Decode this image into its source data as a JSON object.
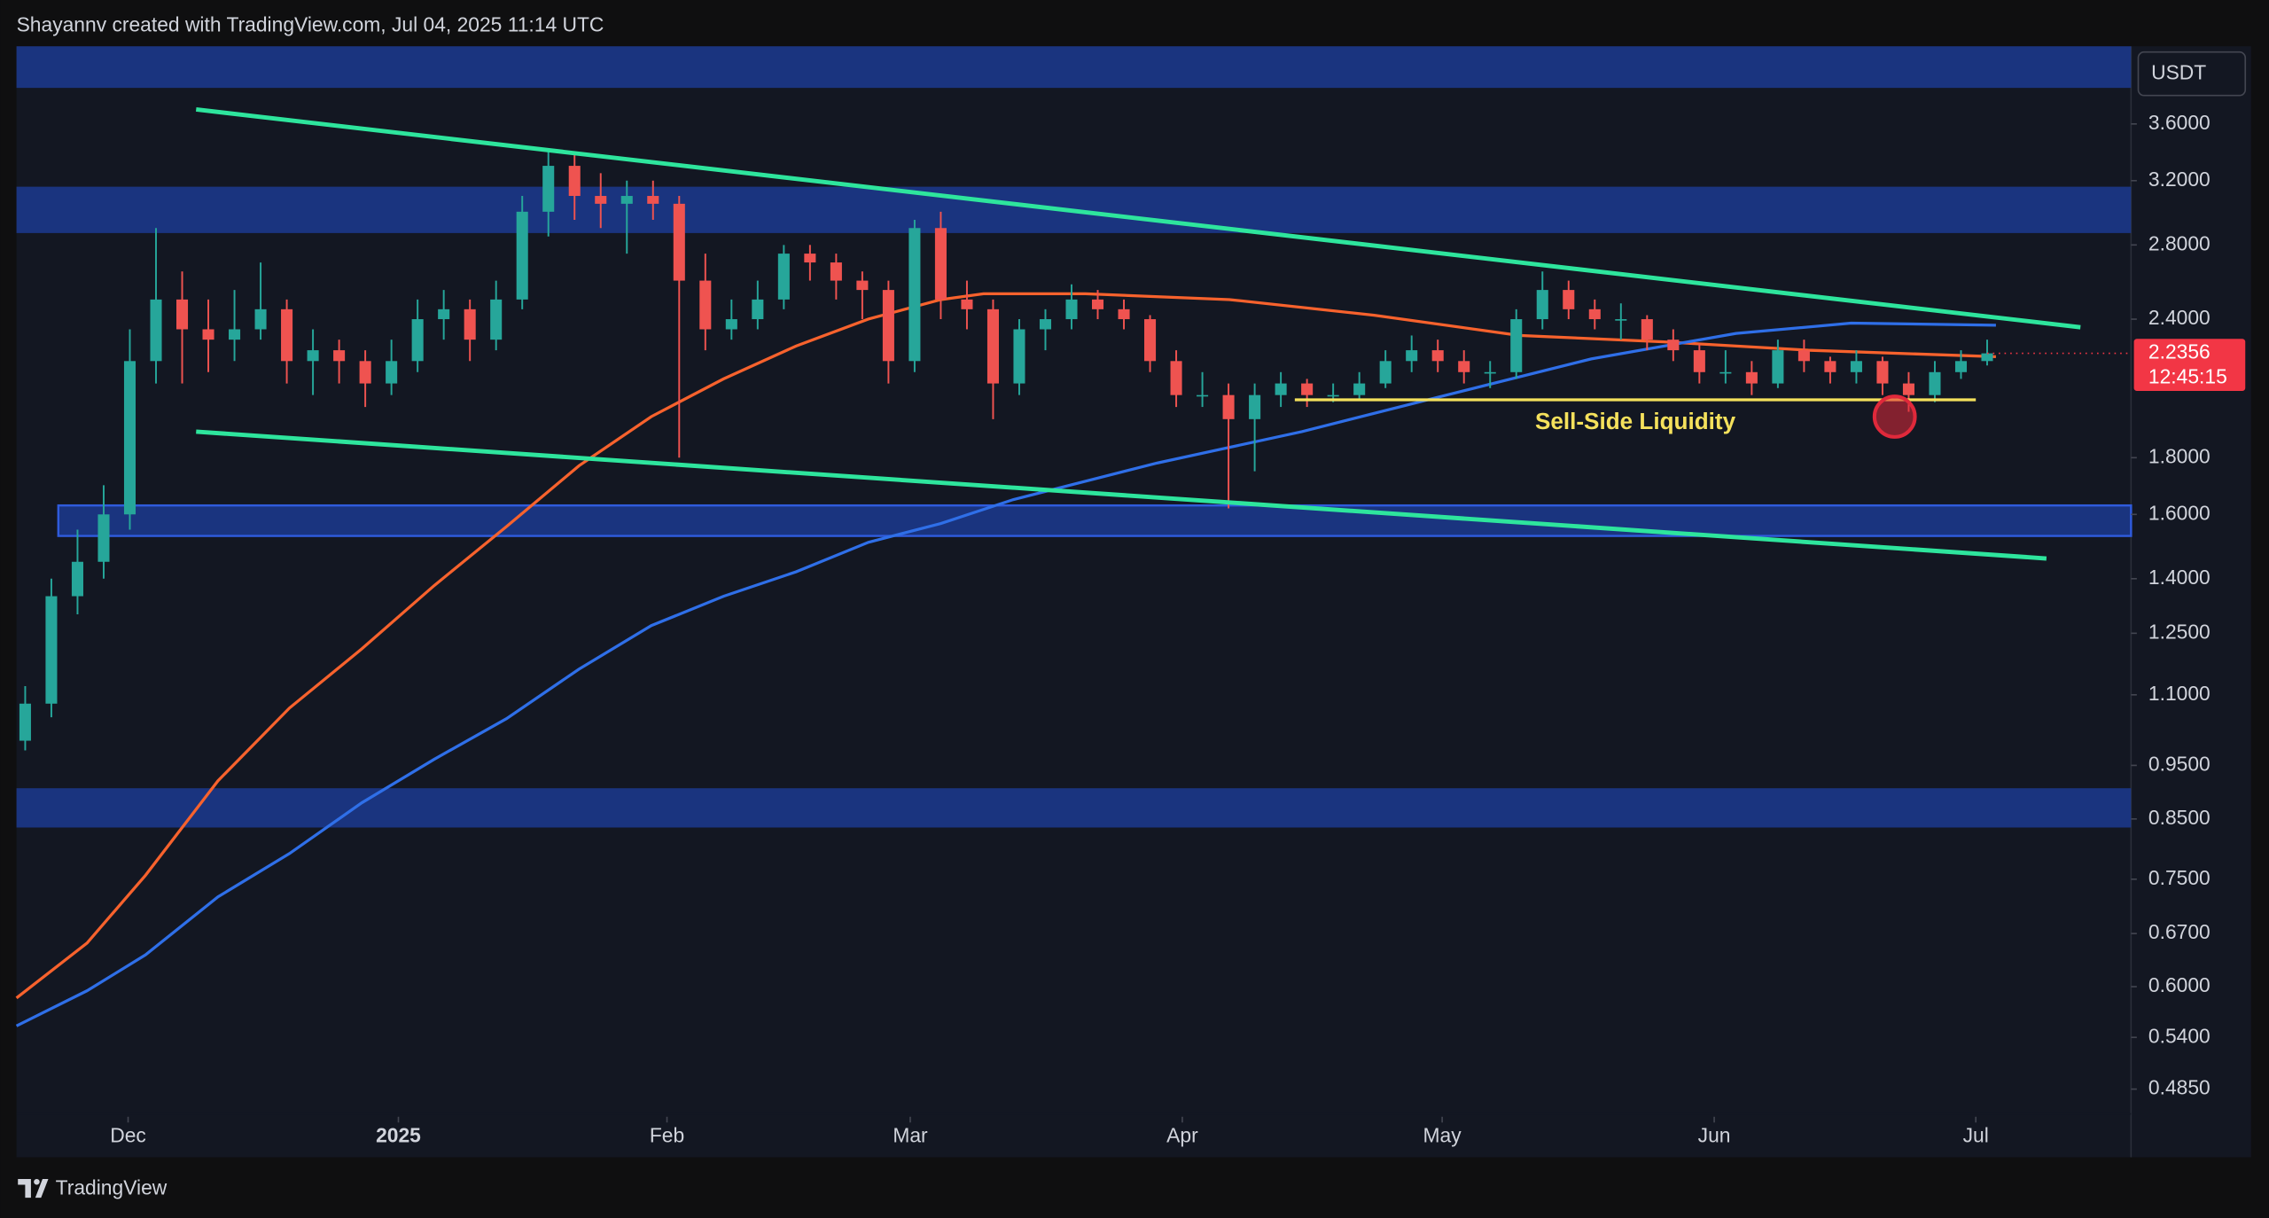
{
  "header": {
    "title": "Shayannv created with TradingView.com, Jul 04, 2025 11:14 UTC"
  },
  "chart_data": {
    "type": "candlestick",
    "x": [
      1,
      4,
      7,
      10,
      13,
      16,
      19,
      22,
      25,
      28,
      31,
      34,
      37,
      40,
      43,
      46,
      49,
      52,
      55,
      58,
      61,
      64,
      67,
      70,
      73,
      76,
      79,
      82,
      85,
      88,
      91,
      94,
      97,
      100,
      103,
      106,
      109,
      112,
      115,
      118,
      121,
      124,
      127,
      130,
      133,
      136,
      139,
      142,
      145,
      148,
      151,
      154,
      157,
      160,
      163,
      166,
      169,
      172,
      175,
      178,
      181,
      184,
      187,
      190,
      193,
      196,
      199,
      202,
      205,
      208,
      211,
      214,
      217,
      220,
      223,
      226
    ],
    "open": [
      1.0,
      1.08,
      1.35,
      1.45,
      1.6,
      2.2,
      2.5,
      2.35,
      2.3,
      2.35,
      2.45,
      2.2,
      2.25,
      2.2,
      2.1,
      2.2,
      2.4,
      2.45,
      2.3,
      2.5,
      3.0,
      3.3,
      3.1,
      3.05,
      3.1,
      3.05,
      2.6,
      2.35,
      2.4,
      2.5,
      2.75,
      2.7,
      2.6,
      2.55,
      2.2,
      2.9,
      2.5,
      2.45,
      2.1,
      2.35,
      2.4,
      2.5,
      2.45,
      2.4,
      2.2,
      2.05,
      2.05,
      1.95,
      2.05,
      2.1,
      2.05,
      2.05,
      2.1,
      2.2,
      2.25,
      2.2,
      2.15,
      2.15,
      2.4,
      2.55,
      2.45,
      2.4,
      2.4,
      2.3,
      2.25,
      2.15,
      2.15,
      2.1,
      2.25,
      2.2,
      2.15,
      2.2,
      2.1,
      2.05,
      2.15,
      2.2
    ],
    "high": [
      1.12,
      1.4,
      1.55,
      1.7,
      2.35,
      2.9,
      2.65,
      2.5,
      2.55,
      2.7,
      2.5,
      2.35,
      2.3,
      2.25,
      2.3,
      2.5,
      2.55,
      2.5,
      2.6,
      3.1,
      3.4,
      3.4,
      3.25,
      3.2,
      3.2,
      3.1,
      2.75,
      2.5,
      2.6,
      2.8,
      2.8,
      2.75,
      2.65,
      2.6,
      2.95,
      3.0,
      2.6,
      2.5,
      2.4,
      2.45,
      2.58,
      2.55,
      2.5,
      2.42,
      2.25,
      2.15,
      2.1,
      2.1,
      2.15,
      2.12,
      2.1,
      2.15,
      2.25,
      2.32,
      2.3,
      2.25,
      2.2,
      2.45,
      2.65,
      2.6,
      2.5,
      2.48,
      2.42,
      2.35,
      2.28,
      2.25,
      2.2,
      2.3,
      2.3,
      2.22,
      2.25,
      2.22,
      2.15,
      2.2,
      2.25,
      2.3
    ],
    "low": [
      0.98,
      1.05,
      1.3,
      1.4,
      1.55,
      2.1,
      2.1,
      2.15,
      2.2,
      2.3,
      2.1,
      2.05,
      2.1,
      2.0,
      2.05,
      2.15,
      2.3,
      2.2,
      2.25,
      2.45,
      2.85,
      2.95,
      2.9,
      2.75,
      2.95,
      1.8,
      2.25,
      2.3,
      2.35,
      2.45,
      2.6,
      2.5,
      2.4,
      2.1,
      2.15,
      2.4,
      2.35,
      1.95,
      2.05,
      2.25,
      2.35,
      2.4,
      2.35,
      2.15,
      2.0,
      2.0,
      1.62,
      1.75,
      2.0,
      2.0,
      2.02,
      2.03,
      2.08,
      2.15,
      2.15,
      2.1,
      2.08,
      2.12,
      2.35,
      2.4,
      2.35,
      2.3,
      2.25,
      2.2,
      2.1,
      2.1,
      2.05,
      2.08,
      2.15,
      2.1,
      2.1,
      2.05,
      1.98,
      2.02,
      2.12,
      2.18
    ],
    "close": [
      1.08,
      1.35,
      1.45,
      1.6,
      2.2,
      2.5,
      2.35,
      2.3,
      2.35,
      2.45,
      2.2,
      2.25,
      2.2,
      2.1,
      2.2,
      2.4,
      2.45,
      2.3,
      2.5,
      3.0,
      3.3,
      3.1,
      3.05,
      3.1,
      3.05,
      2.6,
      2.35,
      2.4,
      2.5,
      2.75,
      2.7,
      2.6,
      2.55,
      2.2,
      2.9,
      2.5,
      2.45,
      2.1,
      2.35,
      2.4,
      2.5,
      2.45,
      2.4,
      2.2,
      2.05,
      2.05,
      1.95,
      2.05,
      2.1,
      2.05,
      2.05,
      2.1,
      2.2,
      2.25,
      2.2,
      2.15,
      2.15,
      2.4,
      2.55,
      2.45,
      2.4,
      2.4,
      2.3,
      2.25,
      2.15,
      2.15,
      2.1,
      2.25,
      2.2,
      2.15,
      2.2,
      2.1,
      2.05,
      2.15,
      2.2,
      2.2356
    ],
    "up_color": "#26a69a",
    "down_color": "#ef5350",
    "log_scale": true,
    "xlim": [
      0,
      242.5
    ],
    "xticks": [
      {
        "value": 12.8,
        "label": "Dec"
      },
      {
        "value": 43.8,
        "label": "2025"
      },
      {
        "value": 74.6,
        "label": "Feb"
      },
      {
        "value": 102.5,
        "label": "Mar"
      },
      {
        "value": 133.7,
        "label": "Apr"
      },
      {
        "value": 163.5,
        "label": "May"
      },
      {
        "value": 194.7,
        "label": "Jun"
      },
      {
        "value": 224.7,
        "label": "Jul"
      }
    ],
    "ylim": [
      0.421,
      4.23
    ],
    "yticks": [
      {
        "value": 3.6,
        "label": "3.6000"
      },
      {
        "value": 3.2,
        "label": "3.2000"
      },
      {
        "value": 2.8,
        "label": "2.8000"
      },
      {
        "value": 2.4,
        "label": "2.4000"
      },
      {
        "value": 1.8,
        "label": "1.8000"
      },
      {
        "value": 1.6,
        "label": "1.6000"
      },
      {
        "value": 1.4,
        "label": "1.4000"
      },
      {
        "value": 1.25,
        "label": "1.2500"
      },
      {
        "value": 1.1,
        "label": "1.1000"
      },
      {
        "value": 0.95,
        "label": "0.9500"
      },
      {
        "value": 0.85,
        "label": "0.8500"
      },
      {
        "value": 0.75,
        "label": "0.7500"
      },
      {
        "value": 0.67,
        "label": "0.6700"
      },
      {
        "value": 0.6,
        "label": "0.6000"
      },
      {
        "value": 0.54,
        "label": "0.5400"
      },
      {
        "value": 0.485,
        "label": "0.4850"
      }
    ],
    "currency": "USDT",
    "last_price": 2.2356,
    "countdown": "12:45:15",
    "last_price_color": "#f23645",
    "zones": [
      {
        "x": [
          0,
          242.5
        ],
        "values": [
          3.88,
          4.23
        ]
      },
      {
        "x": [
          0,
          242.5
        ],
        "values": [
          2.87,
          3.16
        ]
      },
      {
        "x": [
          4.8,
          242.5
        ],
        "values": [
          1.53,
          1.63
        ]
      },
      {
        "x": [
          0,
          242.5
        ],
        "values": [
          0.835,
          0.906
        ]
      }
    ],
    "zone_color": "#1c3a8f",
    "lines": [
      {
        "color": "#f7622d",
        "x": [
          0,
          8.1,
          14.8,
          23.1,
          31.3,
          39.6,
          47.9,
          56.2,
          64.5,
          72.8,
          81.1,
          89.4,
          97.7,
          106.0,
          110.9,
          122.6,
          139.1,
          155.7,
          172.3,
          188.9,
          205.5,
          227.0
        ],
        "values": [
          0.586,
          0.657,
          0.756,
          0.92,
          1.07,
          1.21,
          1.38,
          1.56,
          1.77,
          1.96,
          2.12,
          2.27,
          2.4,
          2.5,
          2.53,
          2.53,
          2.5,
          2.42,
          2.32,
          2.29,
          2.25,
          2.22
        ]
      },
      {
        "color": "#2f6fe8",
        "x": [
          0,
          8.1,
          14.8,
          23.1,
          31.3,
          39.6,
          47.9,
          56.2,
          64.5,
          72.8,
          81.1,
          89.4,
          97.7,
          106.0,
          114.3,
          130.8,
          147.4,
          164.0,
          180.6,
          197.2,
          210.4,
          227.0
        ],
        "values": [
          0.553,
          0.595,
          0.641,
          0.723,
          0.791,
          0.879,
          0.962,
          1.047,
          1.16,
          1.27,
          1.35,
          1.42,
          1.51,
          1.57,
          1.65,
          1.78,
          1.9,
          2.05,
          2.21,
          2.33,
          2.38,
          2.37
        ]
      }
    ],
    "trendlines": [
      {
        "color": "#2ee59d",
        "x": [
          20.6,
          236.7
        ],
        "values": [
          3.71,
          2.36
        ]
      },
      {
        "color": "#2ee59d",
        "x": [
          20.6,
          232.8
        ],
        "values": [
          1.9,
          1.46
        ]
      }
    ],
    "liquidity": {
      "label": "Sell-Side Liquidity",
      "color": "#f5e15c",
      "x": [
        146.6,
        224.7
      ],
      "value": 2.03
    },
    "marker": {
      "x": 215.4,
      "value": 1.96,
      "color": "#e0293b"
    }
  },
  "footer": {
    "brand": "TradingView"
  }
}
